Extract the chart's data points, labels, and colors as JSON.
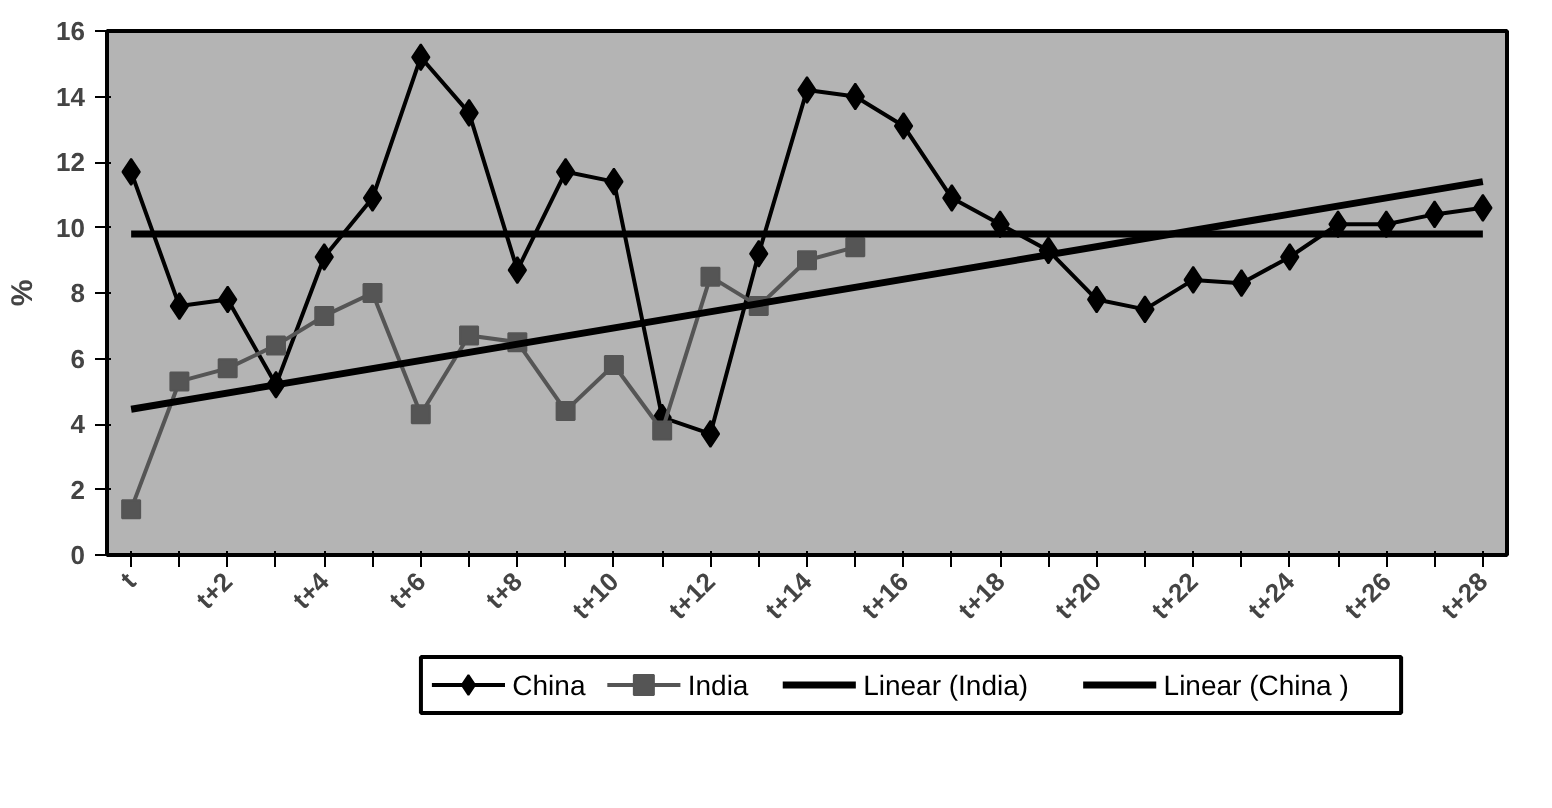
{
  "chart_data": {
    "type": "line",
    "ylabel": "%",
    "categories": [
      "t",
      null,
      "t+2",
      null,
      "t+4",
      null,
      "t+6",
      null,
      "t+8",
      null,
      "t+10",
      null,
      "t+12",
      null,
      "t+14",
      null,
      "t+16",
      null,
      "t+18",
      null,
      "t+20",
      null,
      "t+22",
      null,
      "t+24",
      null,
      "t+26",
      null,
      "t+28"
    ],
    "series": [
      {
        "name": "China",
        "color": "#000000",
        "marker": "diamond",
        "values": [
          11.7,
          7.6,
          7.8,
          5.2,
          9.1,
          10.9,
          15.2,
          13.5,
          8.7,
          11.7,
          11.4,
          4.2,
          3.7,
          9.2,
          14.2,
          14.0,
          13.1,
          10.9,
          10.1,
          9.3,
          7.8,
          7.5,
          8.4,
          8.3,
          9.1,
          10.1,
          10.1,
          10.4,
          10.6
        ]
      },
      {
        "name": "India",
        "color": "#555555",
        "marker": "square",
        "values": [
          1.4,
          5.3,
          5.7,
          6.4,
          7.3,
          8.0,
          4.3,
          6.7,
          6.5,
          4.4,
          5.8,
          3.8,
          8.5,
          7.6,
          9.0,
          9.4,
          null,
          null,
          null,
          null,
          null,
          null,
          null,
          null,
          null,
          null,
          null,
          null,
          null
        ]
      },
      {
        "name": "Linear (India)",
        "color": "#000000",
        "marker": "none",
        "x": [
          "t",
          "t+28"
        ],
        "values": [
          4.45,
          11.4
        ]
      },
      {
        "name": "Linear (China )",
        "color": "#000000",
        "marker": "none",
        "x": [
          "t",
          "t+28"
        ],
        "values": [
          9.8,
          9.8
        ]
      }
    ],
    "ylim": [
      0,
      16
    ],
    "yticks": [
      0,
      2,
      4,
      6,
      8,
      10,
      12,
      14,
      16
    ],
    "grid": false,
    "legend": "bottom",
    "line_style": "solid"
  }
}
